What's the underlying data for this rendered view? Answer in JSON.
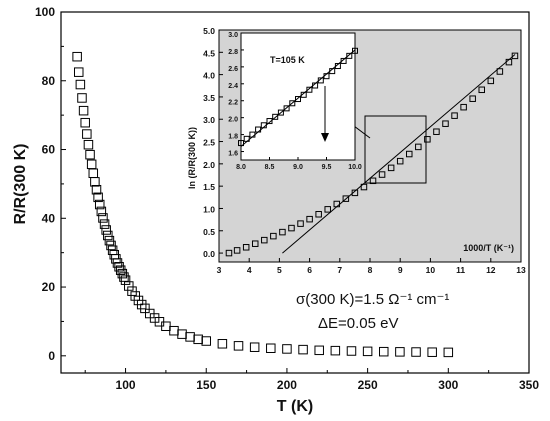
{
  "chart_data": [
    {
      "type": "scatter",
      "panel": "main",
      "xlabel": "T (K)",
      "ylabel": "R/R(300 K)",
      "xlim": [
        60,
        350
      ],
      "ylim": [
        -5,
        100
      ],
      "xticks": [
        "100",
        "150",
        "200",
        "250",
        "300",
        "350"
      ],
      "yticks": [
        "0",
        "20",
        "40",
        "60",
        "80",
        "100"
      ],
      "marker": "open-square",
      "annotations": {
        "conductivity": "σ(300 K)=1.5 Ω⁻¹ cm⁻¹",
        "activation": "ΔE=0.05 eV"
      },
      "series": [
        {
          "x": [
            70,
            71,
            72,
            73,
            74,
            75,
            76,
            77,
            78,
            79,
            80,
            81,
            82,
            83,
            84,
            85,
            86,
            87,
            88,
            89,
            90,
            91,
            92,
            93,
            94,
            95,
            96,
            97,
            98,
            99,
            100,
            102,
            104,
            106,
            108,
            110,
            112,
            115,
            118,
            121,
            125,
            130,
            135,
            140,
            145,
            150,
            160,
            170,
            180,
            190,
            200,
            210,
            220,
            230,
            240,
            250,
            260,
            270,
            280,
            290,
            300
          ],
          "y": [
            87,
            82.5,
            78.9,
            75.0,
            71.3,
            67.8,
            64.5,
            61.4,
            58.5,
            55.7,
            53.1,
            50.6,
            48.3,
            46.1,
            44.0,
            42.0,
            40.1,
            38.3,
            36.6,
            35.0,
            33.5,
            32.1,
            30.7,
            29.4,
            28.2,
            27.0,
            25.9,
            24.9,
            23.9,
            22.9,
            22.0,
            20.3,
            18.8,
            17.4,
            16.1,
            14.9,
            13.8,
            12.3,
            11.0,
            9.9,
            8.6,
            7.3,
            6.3,
            5.5,
            4.8,
            4.3,
            3.5,
            2.9,
            2.5,
            2.2,
            2.0,
            1.8,
            1.6,
            1.5,
            1.4,
            1.3,
            1.2,
            1.15,
            1.1,
            1.05,
            1.0
          ]
        }
      ]
    },
    {
      "type": "scatter",
      "panel": "inset",
      "xlabel": "1000/T (K⁻¹)",
      "ylabel": "ln (R/R(300 K))",
      "xlim": [
        3,
        13
      ],
      "ylim": [
        -0.2,
        5.0
      ],
      "xticks": [
        "3",
        "4",
        "5",
        "6",
        "7",
        "8",
        "9",
        "10",
        "11",
        "12",
        "13"
      ],
      "yticks": [
        "0.0",
        "0.5",
        "1.0",
        "1.5",
        "2.0",
        "2.5",
        "3.0",
        "3.5",
        "4.0",
        "4.5",
        "5.0"
      ],
      "marker": "open-square",
      "series": [
        {
          "x": [
            3.33,
            3.6,
            3.9,
            4.2,
            4.5,
            4.8,
            5.1,
            5.4,
            5.7,
            6.0,
            6.3,
            6.6,
            6.9,
            7.2,
            7.5,
            7.8,
            8.1,
            8.4,
            8.7,
            9.0,
            9.3,
            9.6,
            9.9,
            10.2,
            10.5,
            10.8,
            11.1,
            11.4,
            11.7,
            12.0,
            12.3,
            12.6,
            12.8
          ],
          "y": [
            0.0,
            0.06,
            0.13,
            0.21,
            0.29,
            0.38,
            0.47,
            0.56,
            0.66,
            0.76,
            0.87,
            0.98,
            1.1,
            1.22,
            1.35,
            1.48,
            1.62,
            1.76,
            1.91,
            2.06,
            2.22,
            2.38,
            2.55,
            2.72,
            2.9,
            3.08,
            3.27,
            3.46,
            3.66,
            3.86,
            4.07,
            4.28,
            4.42
          ]
        }
      ],
      "fit_line": {
        "x": [
          5.1,
          12.8
        ],
        "y": [
          0.0,
          4.45
        ]
      }
    },
    {
      "type": "scatter",
      "panel": "zoom",
      "label": "T=105 K",
      "xlim": [
        8.0,
        10.0
      ],
      "ylim": [
        1.5,
        3.0
      ],
      "xticks": [
        "8.0",
        "8.5",
        "9.0",
        "9.5",
        "10.0"
      ],
      "yticks": [
        "1.6",
        "1.8",
        "2.0",
        "2.2",
        "2.4",
        "2.6",
        "2.8",
        "3.0"
      ],
      "marker": "open-square",
      "series": [
        {
          "x": [
            8.0,
            8.1,
            8.2,
            8.3,
            8.4,
            8.5,
            8.6,
            8.7,
            8.8,
            8.9,
            9.0,
            9.1,
            9.2,
            9.3,
            9.4,
            9.5,
            9.6,
            9.7,
            9.8,
            9.9,
            10.0
          ],
          "y": [
            1.7,
            1.75,
            1.8,
            1.86,
            1.91,
            1.96,
            2.01,
            2.06,
            2.11,
            2.17,
            2.22,
            2.27,
            2.33,
            2.38,
            2.44,
            2.49,
            2.55,
            2.61,
            2.67,
            2.73,
            2.79
          ]
        }
      ],
      "fit_line": {
        "x": [
          8.0,
          10.0
        ],
        "y": [
          1.66,
          2.8
        ]
      }
    }
  ]
}
